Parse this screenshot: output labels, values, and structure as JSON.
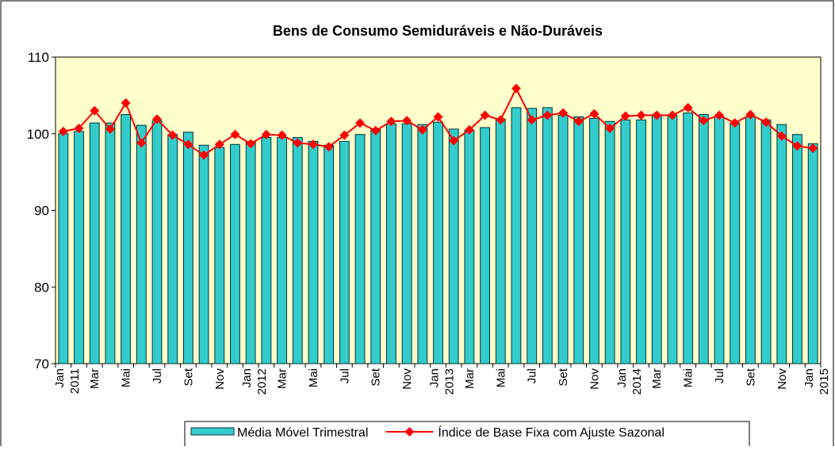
{
  "chart_data": {
    "type": "bar-line",
    "title": "Bens de Consumo Semiduráveis e Não-Duráveis",
    "categories": [
      "Jan 2011",
      null,
      "Mar",
      null,
      "Mai",
      null,
      "Jul",
      null,
      "Set",
      null,
      "Nov",
      null,
      "Jan 2012",
      null,
      "Mar",
      null,
      "Mai",
      null,
      "Jul",
      null,
      "Set",
      null,
      "Nov",
      null,
      "Jan 2013",
      null,
      "Mar",
      null,
      "Mai",
      null,
      "Jul",
      null,
      "Set",
      null,
      "Nov",
      null,
      "Jan 2014",
      null,
      "Mar",
      null,
      "Mai",
      null,
      "Jul",
      null,
      "Set",
      null,
      "Nov",
      null,
      "Jan 2015"
    ],
    "series": [
      {
        "name": "Média Móvel Trimestral",
        "type": "bar",
        "color": "#33cccc",
        "values": [
          100,
          100.3,
          101.4,
          101.4,
          102.5,
          101.1,
          101.7,
          99.9,
          100.2,
          98.5,
          98.2,
          98.6,
          98.9,
          99.5,
          99.5,
          99.5,
          99,
          98.5,
          99,
          99.9,
          100.6,
          101.3,
          101.3,
          101.2,
          101.5,
          100.6,
          100.4,
          100.8,
          101.9,
          103.4,
          103.3,
          103.4,
          102.4,
          102.2,
          102,
          101.6,
          101.8,
          101.8,
          102.4,
          102.4,
          102.7,
          102.5,
          102.2,
          101.4,
          102.2,
          101.8,
          101.2,
          99.9,
          98.7
        ]
      },
      {
        "name": "Índice de Base Fixa com Ajuste Sazonal",
        "type": "line",
        "color": "#ff0000",
        "values": [
          100.3,
          100.7,
          103,
          100.6,
          104,
          98.8,
          101.9,
          99.8,
          98.6,
          97.2,
          98.6,
          99.9,
          98.7,
          99.9,
          99.8,
          98.8,
          98.6,
          98.3,
          99.8,
          101.4,
          100.4,
          101.6,
          101.7,
          100.5,
          102.2,
          99.1,
          100.5,
          102.4,
          101.8,
          105.9,
          101.8,
          102.4,
          102.7,
          101.6,
          102.6,
          100.7,
          102.3,
          102.4,
          102.4,
          102.4,
          103.4,
          101.7,
          102.4,
          101.4,
          102.5,
          101.5,
          99.7,
          98.4,
          98.1
        ]
      }
    ],
    "ylim": [
      70,
      110
    ],
    "yticks": [
      70,
      80,
      90,
      100,
      110
    ],
    "grid": false,
    "plot_background": "#ffffcc",
    "legend": "bottom"
  }
}
